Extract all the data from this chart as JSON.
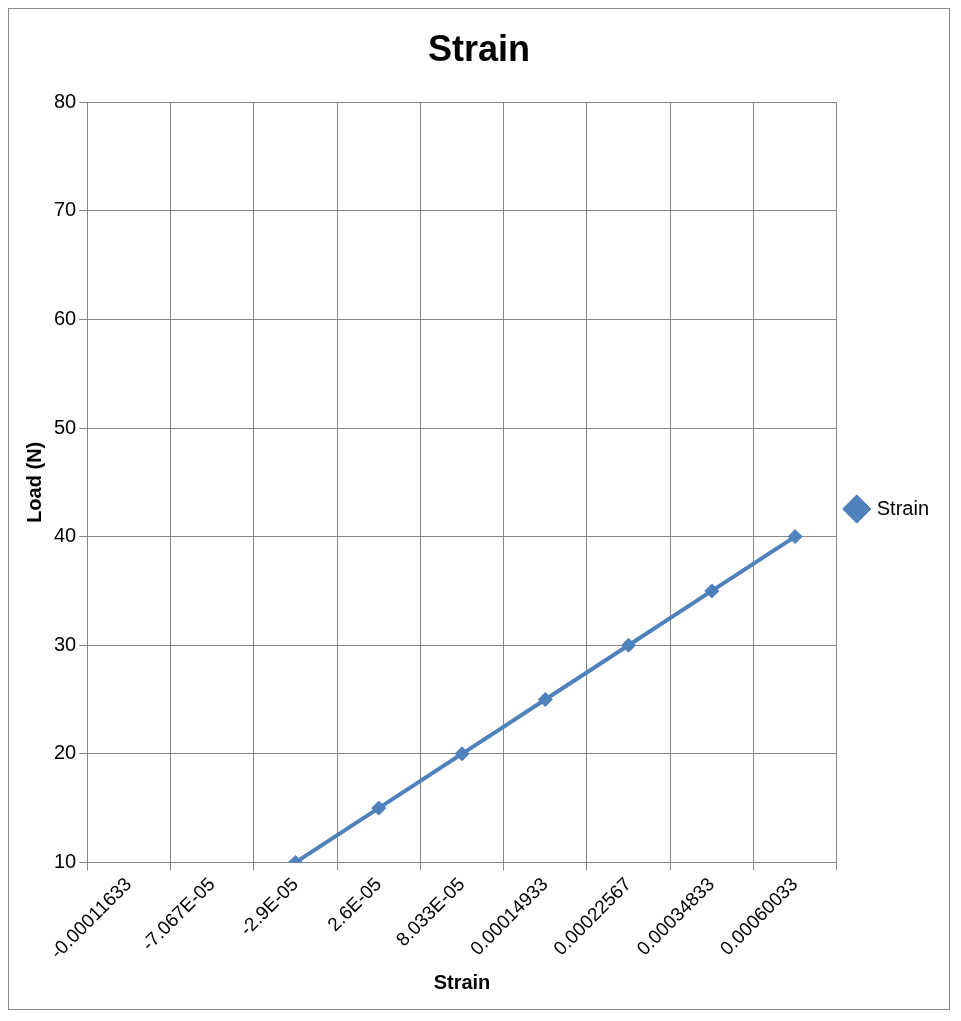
{
  "chart_data": {
    "type": "line",
    "title": "Strain",
    "xlabel": "Strain",
    "ylabel": "Load (N)",
    "categories": [
      "-0.00011633",
      "-7.067E-05",
      "-2.9E-05",
      "2.6E-05",
      "8.033E-05",
      "0.00014933",
      "0.00022567",
      "0.00034833",
      "0.00060033"
    ],
    "series": [
      {
        "name": "Strain",
        "color": "#4f81bd",
        "values": [
          null,
          null,
          10,
          15,
          20,
          25,
          30,
          35,
          40
        ]
      }
    ],
    "ylim": [
      10,
      80
    ],
    "yticks": [
      10,
      20,
      30,
      40,
      50,
      60,
      70,
      80
    ],
    "grid": true,
    "legend": "right",
    "marker": "diamond",
    "line_style": "solid"
  }
}
